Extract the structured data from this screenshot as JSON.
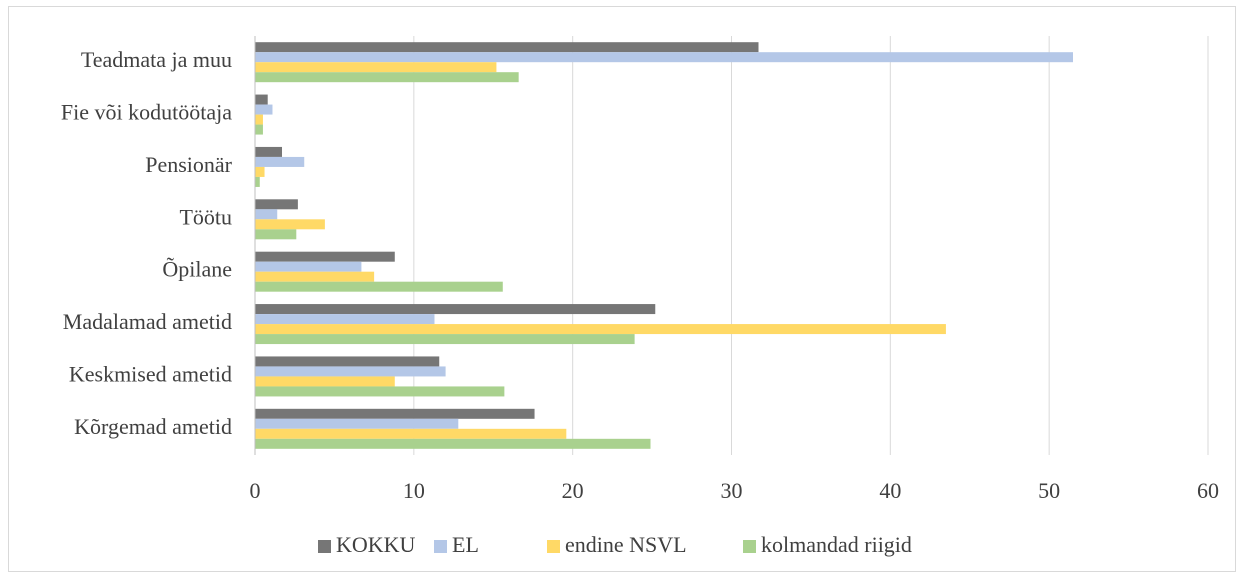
{
  "chart_data": {
    "type": "hbar",
    "categories": [
      "Teadmata ja muu",
      "Fie või kodutöötaja",
      "Pensionär",
      "Töötu",
      "Õpilane",
      "Madalamad ametid",
      "Keskmised ametid",
      "Kõrgemad ametid"
    ],
    "series": [
      {
        "name": "KOKKU",
        "color": "#767676",
        "values": [
          31.7,
          0.8,
          1.7,
          2.7,
          8.8,
          25.2,
          11.6,
          17.6
        ]
      },
      {
        "name": "EL",
        "color": "#b4c7e7",
        "values": [
          51.5,
          1.1,
          3.1,
          1.4,
          6.7,
          11.3,
          12.0,
          12.8
        ]
      },
      {
        "name": "endine NSVL",
        "color": "#ffd966",
        "values": [
          15.2,
          0.5,
          0.6,
          4.4,
          7.5,
          43.5,
          8.8,
          19.6
        ]
      },
      {
        "name": "kolmandad riigid",
        "color": "#a9d18e",
        "values": [
          16.6,
          0.5,
          0.3,
          2.6,
          15.6,
          23.9,
          15.7,
          24.9
        ]
      }
    ],
    "xlim": [
      0,
      60
    ],
    "xticks": [
      0,
      10,
      20,
      30,
      40,
      50,
      60
    ],
    "grid": true,
    "legend": "bottom"
  }
}
